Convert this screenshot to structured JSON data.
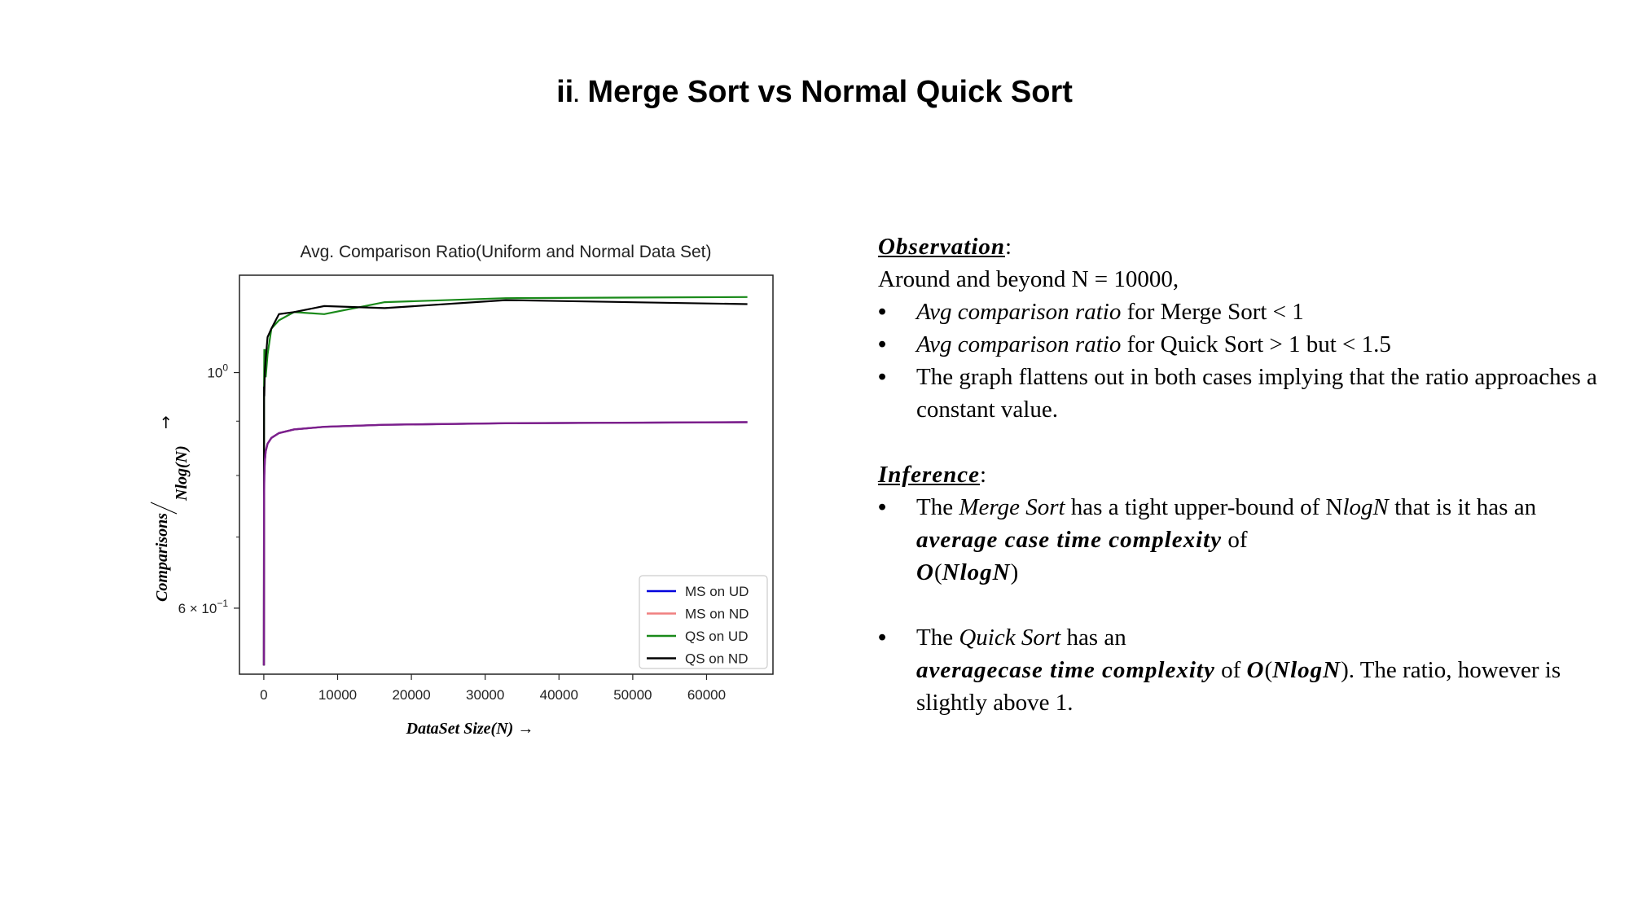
{
  "slide": {
    "title_num": "ii",
    "title_dot": ".",
    "title_text": " Merge Sort vs Normal Quick Sort"
  },
  "observation": {
    "heading": "Observation",
    "colon": ":",
    "intro": "Around and beyond N = 10000,",
    "bullets": [
      {
        "pre": "",
        "it": "Avg comparison ratio",
        "post": " for Merge Sort < 1"
      },
      {
        "pre": "",
        "it": "Avg comparison ratio",
        "post": " for Quick Sort > 1 but < 1.5"
      },
      {
        "pre": "The graph flattens out in both cases implying that the ratio approaches  a constant value.",
        "it": "",
        "post": ""
      }
    ]
  },
  "inference": {
    "heading": "Inference",
    "colon": ":",
    "bullet1": {
      "a": "The ",
      "b": "Merge Sort",
      "c": " has a tight upper-bound of  N",
      "d": "logN",
      "e": " that is it has an ",
      "f": "average case time complexity",
      "g": " of ",
      "h": "O",
      "i": "(",
      "j": "NlogN",
      "k": ")"
    },
    "bullet2": {
      "a": "The ",
      "b": "Quick Sort",
      "c": " has an ",
      "d": "averagecase time complexity",
      "e": " of ",
      "f": "O",
      "g": "(",
      "h": "NlogN",
      "i": "). The ratio, however is slightly above 1."
    },
    "bullet_char": "•"
  },
  "chart_data": {
    "type": "line",
    "title": "Avg. Comparison Ratio(Uniform and Normal Data Set)",
    "xlabel": "DataSet Size(N) →",
    "ylabel_num": "Comparisons",
    "ylabel_den": "Nlog(N)",
    "ylabel_arrow": "→",
    "yscale": "log",
    "xlim": [
      -3300,
      69000
    ],
    "ylim": [
      0.52,
      1.235
    ],
    "x_ticks": [
      0,
      10000,
      20000,
      30000,
      40000,
      50000,
      60000
    ],
    "x_tick_labels": [
      "0",
      "10000",
      "20000",
      "30000",
      "40000",
      "50000",
      "60000"
    ],
    "y_ticks": [
      {
        "value": 1.0,
        "base": "10",
        "exp": "0"
      },
      {
        "value": 0.6,
        "base": "6 × 10",
        "exp": "−1"
      }
    ],
    "y_minor_ticks": [
      0.7,
      0.8,
      0.9
    ],
    "grid": false,
    "legend_position": "lower-right",
    "x": [
      16,
      32,
      64,
      128,
      256,
      512,
      1024,
      2048,
      4096,
      8192,
      16384,
      32768,
      65536
    ],
    "series": [
      {
        "name": "MS on UD",
        "color": "#0000dd",
        "values": [
          0.53,
          0.76,
          0.8,
          0.825,
          0.843,
          0.857,
          0.868,
          0.877,
          0.884,
          0.889,
          0.893,
          0.896,
          0.898
        ]
      },
      {
        "name": "MS on ND",
        "color": "#f08080",
        "values": [
          0.53,
          0.76,
          0.8,
          0.825,
          0.843,
          0.857,
          0.868,
          0.877,
          0.884,
          0.889,
          0.893,
          0.896,
          0.898
        ]
      },
      {
        "name": "QS on UD",
        "color": "#1a8a1a",
        "values": [
          0.53,
          0.97,
          1.05,
          1.05,
          0.99,
          1.04,
          1.1,
          1.12,
          1.14,
          1.135,
          1.165,
          1.175,
          1.178
        ]
      },
      {
        "name": "QS on ND",
        "color": "#000000",
        "values": [
          0.53,
          0.97,
          0.95,
          1.0,
          1.03,
          1.08,
          1.1,
          1.135,
          1.14,
          1.155,
          1.15,
          1.17,
          1.16
        ]
      }
    ],
    "overlay_color": "#7b1f8c",
    "legend_border": "#cccccc"
  }
}
